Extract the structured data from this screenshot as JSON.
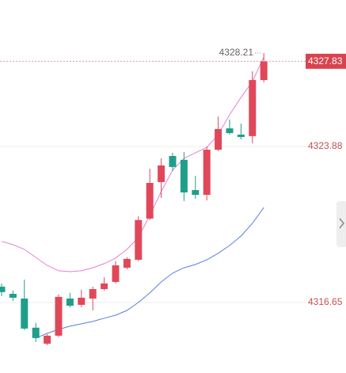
{
  "chart_data": {
    "type": "candlestick",
    "open": [
      4317.38,
      4317.05,
      4316.83,
      4315.48,
      4314.74,
      4315.11,
      4316.83,
      4316.54,
      4316.83,
      4317.27,
      4317.6,
      4318.26,
      4318.63,
      4320.54,
      4322.23,
      4323.44,
      4323.26,
      4321.86,
      4321.64,
      4323.73,
      4324.72,
      4324.43,
      4324.36,
      4326.96
    ],
    "high": [
      4317.53,
      4317.2,
      4317.71,
      4315.7,
      4315.18,
      4317.02,
      4317.09,
      4317.24,
      4317.38,
      4317.82,
      4318.56,
      4318.74,
      4320.65,
      4322.85,
      4323.33,
      4323.59,
      4323.62,
      4322.52,
      4323.88,
      4325.27,
      4325.13,
      4324.94,
      4327.37,
      4328.21
    ],
    "low": [
      4316.94,
      4316.72,
      4315.37,
      4314.82,
      4314.67,
      4315.04,
      4316.43,
      4316.43,
      4316.28,
      4317.2,
      4317.53,
      4318.19,
      4318.56,
      4320.47,
      4321.49,
      4322.74,
      4321.35,
      4321.46,
      4321.38,
      4323.66,
      4324.43,
      4324.21,
      4324.03,
      4326.85
    ],
    "close": [
      4317.13,
      4316.87,
      4315.44,
      4315.0,
      4315.11,
      4316.91,
      4316.5,
      4316.87,
      4317.27,
      4317.53,
      4318.37,
      4318.67,
      4320.47,
      4322.19,
      4323.0,
      4322.93,
      4321.75,
      4321.64,
      4323.73,
      4324.69,
      4324.5,
      4324.32,
      4326.96,
      4327.83
    ],
    "up_color": "#e0485a",
    "down_color": "#1f9e8a",
    "bands": [
      {
        "color": "#e57fd6",
        "values": [
          4319.48,
          4319.33,
          4319.11,
          4318.74,
          4318.37,
          4318.12,
          4318.08,
          4318.12,
          4318.26,
          4318.45,
          4318.71,
          4319.11,
          4319.66,
          4320.69,
          4321.79,
          4322.78,
          4323.33,
          4323.59,
          4323.84,
          4324.43,
          4325.35,
          4326.16,
          4326.89,
          4328.03
        ]
      },
      {
        "color": "#5b7fe0",
        "values": [
          null,
          null,
          null,
          4315.0,
          4315.22,
          4315.4,
          4315.55,
          4315.66,
          4315.77,
          4315.92,
          4316.06,
          4316.28,
          4316.65,
          4317.09,
          4317.6,
          4318.01,
          4318.26,
          4318.41,
          4318.63,
          4318.93,
          4319.29,
          4319.73,
          4320.32,
          4321.05
        ]
      }
    ],
    "ylim": [
      4313.38,
      4330.67
    ],
    "yticks": [
      4323.88,
      4316.65
    ],
    "grid": true,
    "last_price": 4327.83,
    "high_annotation": 4328.21
  }
}
